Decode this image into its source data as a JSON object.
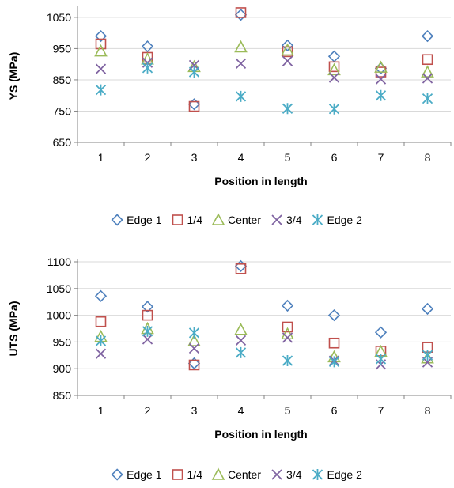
{
  "colors": {
    "Edge 1": "#4F81BD",
    "1/4": "#C0504D",
    "Center": "#9BBB59",
    "3/4": "#8064A2",
    "Edge 2": "#4BACC6",
    "axis": "#868686",
    "grid": "#d9d9d9"
  },
  "markers": {
    "Edge 1": "diamond-open",
    "1/4": "square-open",
    "Center": "triangle-open",
    "3/4": "x-cross",
    "Edge 2": "asterisk"
  },
  "chart_data": [
    {
      "type": "scatter",
      "title": "",
      "xlabel": "Position in length",
      "ylabel": "YS (MPa)",
      "x": [
        1,
        2,
        3,
        4,
        5,
        6,
        7,
        8
      ],
      "xlim": [
        0.5,
        8.5
      ],
      "ylim": [
        650,
        1075
      ],
      "yticks": [
        650,
        750,
        850,
        950,
        1050
      ],
      "grid": "horizontal",
      "legend": "bottom",
      "series": [
        {
          "name": "Edge 1",
          "values": [
            990,
            957,
            772,
            1058,
            960,
            925,
            887,
            990
          ]
        },
        {
          "name": "1/4",
          "values": [
            965,
            922,
            765,
            1065,
            940,
            892,
            875,
            915
          ]
        },
        {
          "name": "Center",
          "values": [
            942,
            916,
            892,
            955,
            945,
            882,
            890,
            875
          ]
        },
        {
          "name": "3/4",
          "values": [
            885,
            905,
            897,
            902,
            910,
            857,
            852,
            855
          ]
        },
        {
          "name": "Edge 2",
          "values": [
            818,
            888,
            875,
            797,
            758,
            757,
            800,
            790
          ]
        }
      ]
    },
    {
      "type": "scatter",
      "title": "",
      "xlabel": "Position in length",
      "ylabel": "UTS (MPa)",
      "x": [
        1,
        2,
        3,
        4,
        5,
        6,
        7,
        8
      ],
      "xlim": [
        0.5,
        8.5
      ],
      "ylim": [
        850,
        1100
      ],
      "yticks": [
        850,
        900,
        950,
        1000,
        1050,
        1100
      ],
      "grid": "horizontal",
      "legend": "bottom",
      "series": [
        {
          "name": "Edge 1",
          "values": [
            1036,
            1016,
            910,
            1092,
            1018,
            1000,
            968,
            1012
          ]
        },
        {
          "name": "1/4",
          "values": [
            988,
            1000,
            907,
            1087,
            978,
            948,
            933,
            940
          ]
        },
        {
          "name": "Center",
          "values": [
            960,
            975,
            952,
            973,
            965,
            922,
            932,
            920
          ]
        },
        {
          "name": "3/4",
          "values": [
            928,
            955,
            938,
            953,
            958,
            915,
            908,
            912
          ]
        },
        {
          "name": "Edge 2",
          "values": [
            952,
            970,
            967,
            930,
            915,
            913,
            918,
            925
          ]
        }
      ]
    }
  ]
}
